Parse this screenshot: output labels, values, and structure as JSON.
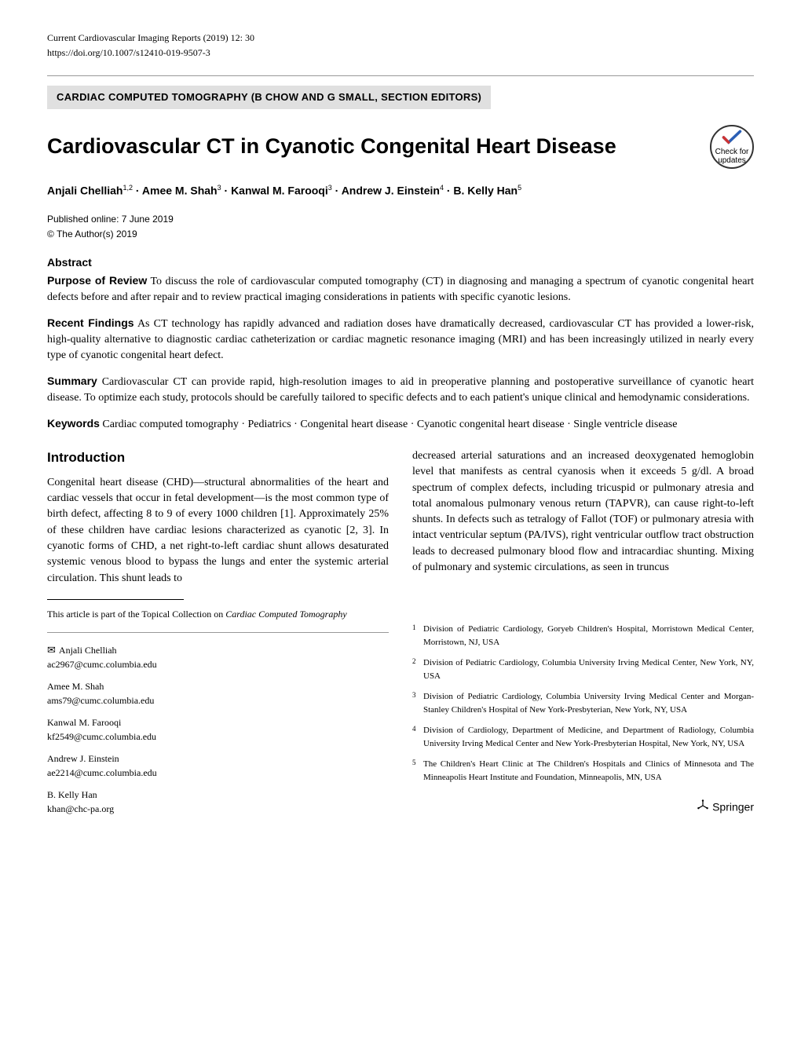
{
  "journal_line": "Current Cardiovascular Imaging Reports (2019) 12: 30",
  "doi": "https://doi.org/10.1007/s12410-019-9507-3",
  "section_editors": "CARDIAC COMPUTED TOMOGRAPHY (B CHOW AND G SMALL, SECTION EDITORS)",
  "title": "Cardiovascular CT in Cyanotic Congenital Heart Disease",
  "check_updates": {
    "line1": "Check for",
    "line2": "updates"
  },
  "authors_html": "Anjali Chelliah",
  "authors": [
    {
      "name": "Anjali Chelliah",
      "sup": "1,2"
    },
    {
      "name": "Amee M. Shah",
      "sup": "3"
    },
    {
      "name": "Kanwal M. Farooqi",
      "sup": "3"
    },
    {
      "name": "Andrew J. Einstein",
      "sup": "4"
    },
    {
      "name": "B. Kelly Han",
      "sup": "5"
    }
  ],
  "published": "Published online: 7 June 2019",
  "copyright": "© The Author(s) 2019",
  "abstract_label": "Abstract",
  "abstract": {
    "purpose_head": "Purpose of Review",
    "purpose_text": " To discuss the role of cardiovascular computed tomography (CT) in diagnosing and managing a spectrum of cyanotic congenital heart defects before and after repair and to review practical imaging considerations in patients with specific cyanotic lesions.",
    "findings_head": "Recent Findings",
    "findings_text": " As CT technology has rapidly advanced and radiation doses have dramatically decreased, cardiovascular CT has provided a lower-risk, high-quality alternative to diagnostic cardiac catheterization or cardiac magnetic resonance imaging (MRI) and has been increasingly utilized in nearly every type of cyanotic congenital heart defect.",
    "summary_head": "Summary",
    "summary_text": " Cardiovascular CT can provide rapid, high-resolution images to aid in preoperative planning and postoperative surveillance of cyanotic heart disease. To optimize each study, protocols should be carefully tailored to specific defects and to each patient's unique clinical and hemodynamic considerations."
  },
  "keywords_label": "Keywords",
  "keywords_text": " Cardiac computed tomography · Pediatrics · Congenital heart disease · Cyanotic congenital heart disease · Single ventricle disease",
  "introduction_heading": "Introduction",
  "intro_col1": "Congenital heart disease (CHD)—structural abnormalities of the heart and cardiac vessels that occur in fetal development—is the most common type of birth defect, affecting 8 to 9 of every 1000 children [1]. Approximately 25% of these children have cardiac lesions characterized as cyanotic [2, 3]. In cyanotic forms of CHD, a net right-to-left cardiac shunt allows desaturated systemic venous blood to bypass the lungs and enter the systemic arterial circulation. This shunt leads to",
  "intro_col2": "decreased arterial saturations and an increased deoxygenated hemoglobin level that manifests as central cyanosis when it exceeds 5 g/dl. A broad spectrum of complex defects, including tricuspid or pulmonary atresia and total anomalous pulmonary venous return (TAPVR), can cause right-to-left shunts. In defects such as tetralogy of Fallot (TOF) or pulmonary atresia with intact ventricular septum (PA/IVS), right ventricular outflow tract obstruction leads to decreased pulmonary blood flow and intracardiac shunting. Mixing of pulmonary and systemic circulations, as seen in truncus",
  "topical_note_pre": "This article is part of the Topical Collection on ",
  "topical_note_italic": "Cardiac Computed Tomography",
  "correspondence": [
    {
      "name": "Anjali Chelliah",
      "email": "ac2967@cumc.columbia.edu",
      "corr": true
    },
    {
      "name": "Amee M. Shah",
      "email": "ams79@cumc.columbia.edu",
      "corr": false
    },
    {
      "name": "Kanwal M. Farooqi",
      "email": "kf2549@cumc.columbia.edu",
      "corr": false
    },
    {
      "name": "Andrew J. Einstein",
      "email": "ae2214@cumc.columbia.edu",
      "corr": false
    },
    {
      "name": "B. Kelly Han",
      "email": "khan@chc-pa.org",
      "corr": false
    }
  ],
  "affiliations": [
    {
      "num": "1",
      "text": "Division of Pediatric Cardiology, Goryeb Children's Hospital, Morristown Medical Center, Morristown, NJ, USA"
    },
    {
      "num": "2",
      "text": "Division of Pediatric Cardiology, Columbia University Irving Medical Center, New York, NY, USA"
    },
    {
      "num": "3",
      "text": "Division of Pediatric Cardiology, Columbia University Irving Medical Center and Morgan-Stanley Children's Hospital of New York-Presbyterian, New York, NY, USA"
    },
    {
      "num": "4",
      "text": "Division of Cardiology, Department of Medicine, and Department of Radiology, Columbia University Irving Medical Center and New York-Presbyterian Hospital, New York, NY, USA"
    },
    {
      "num": "5",
      "text": "The Children's Heart Clinic at The Children's Hospitals and Clinics of Minnesota and The Minneapolis Heart Institute and Foundation, Minneapolis, MN, USA"
    }
  ],
  "publisher": "Springer",
  "colors": {
    "badge_bg": "#e0e0e0",
    "text": "#000000",
    "check_blue": "#2b5fb5",
    "check_red": "#cc3333"
  }
}
